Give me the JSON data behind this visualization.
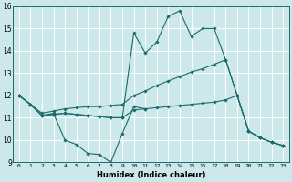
{
  "title": "",
  "xlabel": "Humidex (Indice chaleur)",
  "xlim": [
    -0.5,
    23.5
  ],
  "ylim": [
    9,
    16
  ],
  "yticks": [
    9,
    10,
    11,
    12,
    13,
    14,
    15,
    16
  ],
  "xticks": [
    0,
    1,
    2,
    3,
    4,
    5,
    6,
    7,
    8,
    9,
    10,
    11,
    12,
    13,
    14,
    15,
    16,
    17,
    18,
    19,
    20,
    21,
    22,
    23
  ],
  "bg_color": "#cce8ea",
  "grid_color": "#ffffff",
  "line_color": "#1a6b6b",
  "line1_x": [
    0,
    1,
    2,
    3,
    4,
    5,
    6,
    7,
    8,
    9,
    10,
    11
  ],
  "line1_y": [
    12.0,
    11.6,
    11.1,
    11.2,
    10.0,
    9.8,
    9.4,
    9.35,
    9.0,
    10.3,
    11.5,
    11.4
  ],
  "line2_x": [
    0,
    1,
    2,
    3,
    4,
    5,
    6,
    7,
    8,
    9,
    10,
    11,
    12,
    13,
    14,
    15,
    16,
    17,
    18,
    19,
    20,
    21,
    22,
    23
  ],
  "line2_y": [
    12.0,
    11.6,
    11.1,
    11.15,
    11.2,
    11.15,
    11.1,
    11.05,
    11.0,
    11.0,
    11.35,
    11.4,
    11.45,
    11.5,
    11.55,
    11.6,
    11.65,
    11.7,
    11.8,
    12.0,
    10.4,
    10.1,
    9.9,
    9.75
  ],
  "line3_x": [
    0,
    1,
    2,
    3,
    4,
    5,
    6,
    7,
    8,
    9,
    10,
    11,
    12,
    13,
    14,
    15,
    16,
    17,
    18,
    19,
    20,
    21,
    22,
    23
  ],
  "line3_y": [
    12.0,
    11.6,
    11.1,
    11.15,
    11.2,
    11.15,
    11.1,
    11.05,
    11.0,
    11.0,
    14.8,
    13.9,
    14.4,
    15.55,
    15.8,
    14.65,
    15.0,
    15.0,
    13.6,
    12.0,
    10.4,
    10.1,
    9.9,
    9.75
  ],
  "line4_x": [
    0,
    1,
    2,
    3,
    4,
    5,
    6,
    7,
    8,
    9,
    10,
    11,
    12,
    13,
    14,
    15,
    16,
    17,
    18,
    19,
    20,
    21,
    22,
    23
  ],
  "line4_y": [
    12.0,
    11.6,
    11.2,
    11.3,
    11.4,
    11.45,
    11.5,
    11.5,
    11.55,
    11.6,
    12.0,
    12.2,
    12.45,
    12.65,
    12.85,
    13.05,
    13.2,
    13.4,
    13.6,
    12.0,
    10.4,
    10.1,
    9.9,
    9.75
  ]
}
